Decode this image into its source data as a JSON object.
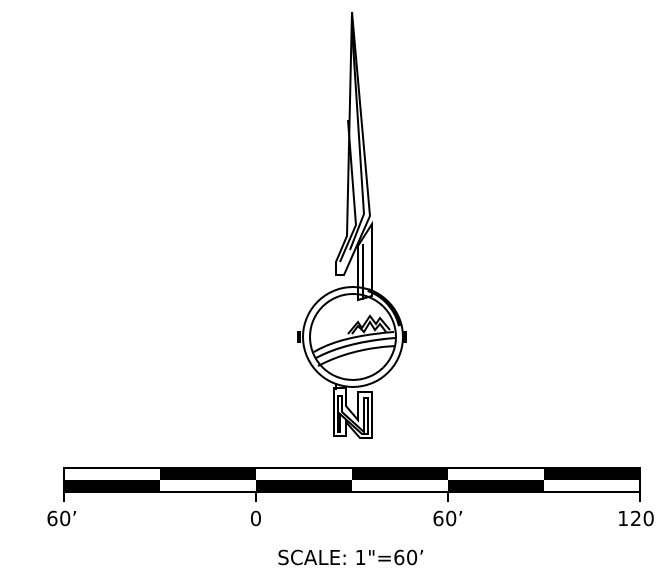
{
  "north_arrow": {
    "letter": "N"
  },
  "scale_bar": {
    "tick_labels": [
      "60’",
      "0",
      "60’",
      "120"
    ],
    "caption": "SCALE:  1\"=60’"
  },
  "colors": {
    "ink": "#000000",
    "paper": "#ffffff"
  }
}
